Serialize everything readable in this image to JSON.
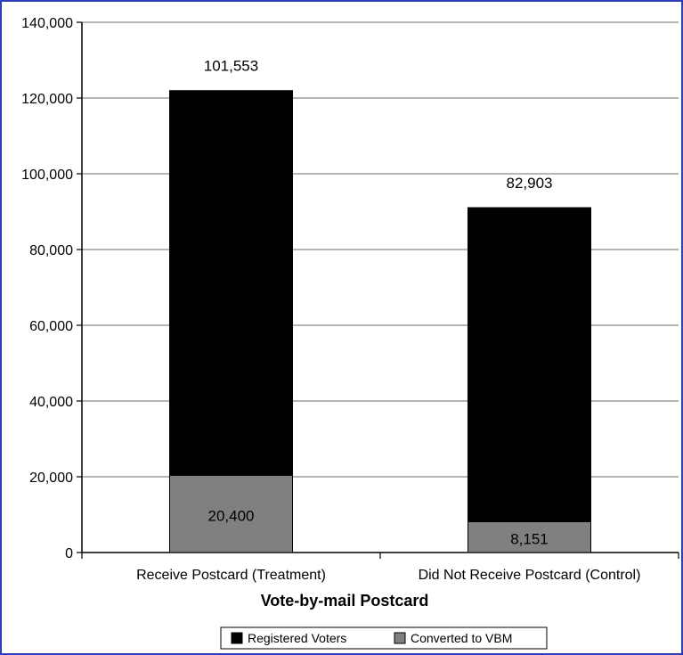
{
  "chart_data": {
    "type": "bar",
    "stacked": true,
    "categories": [
      "Receive Postcard (Treatment)",
      "Did Not Receive Postcard (Control)"
    ],
    "series": [
      {
        "name": "Converted to VBM",
        "values": [
          20400,
          8151
        ],
        "color": "#808080"
      },
      {
        "name": "Registered Voters",
        "values": [
          101553,
          82903
        ],
        "color": "#000000"
      }
    ],
    "data_labels": {
      "Converted to VBM": [
        "20,400",
        "8,151"
      ],
      "Registered Voters": [
        "101,553",
        "82,903"
      ]
    },
    "xlabel": "Vote-by-mail Postcard",
    "ylabel": "",
    "ylim": [
      0,
      140000
    ],
    "yticks": [
      0,
      20000,
      40000,
      60000,
      80000,
      100000,
      120000,
      140000
    ],
    "ytick_labels": [
      "0",
      "20,000",
      "40,000",
      "60,000",
      "80,000",
      "100,000",
      "120,000",
      "140,000"
    ],
    "grid": true,
    "legend": {
      "placement": "bottom",
      "entries": [
        "Registered Voters",
        "Converted to VBM"
      ]
    }
  }
}
